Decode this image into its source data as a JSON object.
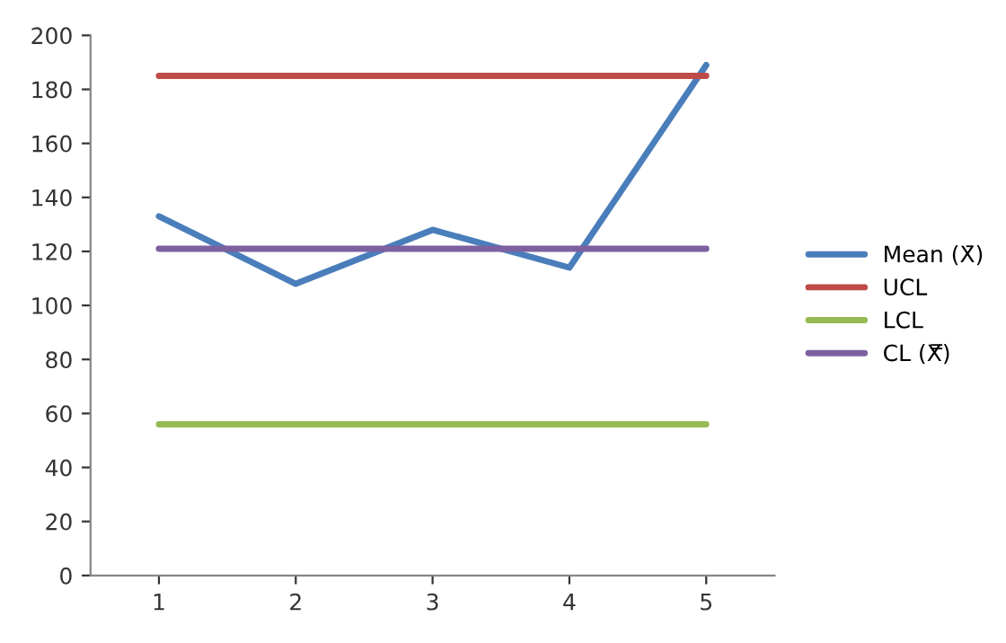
{
  "chart_data": {
    "type": "line",
    "categories": [
      "1",
      "2",
      "3",
      "4",
      "5"
    ],
    "series": [
      {
        "name": "Mean (X̄)",
        "color": "#4a7ebb",
        "values": [
          133,
          108,
          128,
          114,
          189
        ]
      },
      {
        "name": "UCL",
        "color": "#be4b48",
        "values": [
          185,
          185,
          185,
          185,
          185
        ]
      },
      {
        "name": "LCL",
        "color": "#98b954",
        "values": [
          56,
          56,
          56,
          56,
          56
        ]
      },
      {
        "name": "CL (X̿)",
        "color": "#7d60a0",
        "values": [
          121,
          121,
          121,
          121,
          121
        ]
      }
    ],
    "ylim": [
      0,
      200
    ],
    "yticks": [
      0,
      20,
      40,
      60,
      80,
      100,
      120,
      140,
      160,
      180,
      200
    ],
    "grid": false,
    "legend": "right",
    "marker": "none",
    "line_style": "solid"
  }
}
